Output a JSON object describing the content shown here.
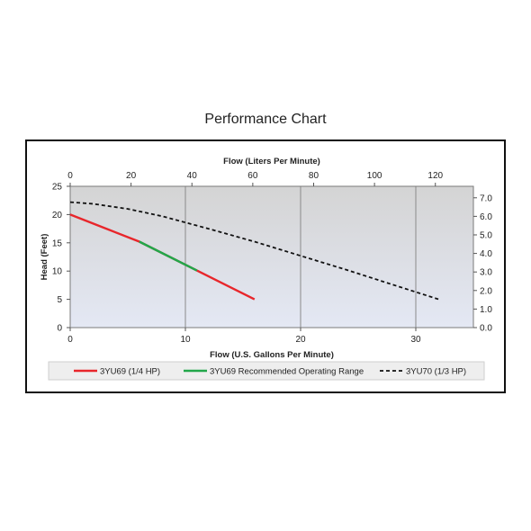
{
  "chart_title": "Performance Chart",
  "chart_data": {
    "type": "line",
    "xlabel": "Flow (U.S. Gallons Per Minute)",
    "x2label": "Flow (Liters Per Minute)",
    "ylabel": "Head (Feet)",
    "y2label": "Head (Meters)",
    "xlim": [
      0,
      35
    ],
    "ylim": [
      0,
      25
    ],
    "x2lim": [
      0,
      132.5
    ],
    "y2lim": [
      0,
      7.62
    ],
    "xticks": [
      0,
      10,
      20,
      30
    ],
    "xtick_labels": [
      "0",
      "10",
      "20",
      "30"
    ],
    "yticks": [
      0,
      5,
      10,
      15,
      20,
      25
    ],
    "ytick_labels": [
      "0",
      "5",
      "10",
      "15",
      "20",
      "25"
    ],
    "x2ticks": [
      0,
      20,
      40,
      60,
      80,
      100,
      120
    ],
    "x2tick_labels": [
      "0",
      "20",
      "40",
      "60",
      "80",
      "100",
      "120"
    ],
    "y2ticks": [
      0,
      1,
      2,
      3,
      4,
      5,
      6,
      7
    ],
    "y2tick_labels": [
      "0.0",
      "1.0",
      "2.0",
      "3.0",
      "4.0",
      "5.0",
      "6.0",
      "7.0"
    ],
    "grid": true,
    "legend_position": "bottom",
    "series": [
      {
        "name": "3YU69 (1/4 HP)",
        "color": "#e8262b",
        "style": "solid",
        "x": [
          0,
          6,
          11,
          16
        ],
        "y": [
          20,
          15.2,
          10.1,
          5
        ]
      },
      {
        "name": "3YU69 Recommended Operating Range",
        "color": "#22a74a",
        "style": "solid",
        "x": [
          6,
          11
        ],
        "y": [
          15.2,
          10.1
        ]
      },
      {
        "name": "3YU70 (1/3 HP)",
        "color": "#111111",
        "style": "dashed",
        "x": [
          0,
          2,
          5,
          8,
          12,
          16,
          20,
          24,
          28,
          32
        ],
        "y": [
          22.2,
          21.9,
          21,
          19.7,
          17.5,
          15.2,
          12.7,
          10.2,
          7.6,
          5
        ]
      }
    ]
  }
}
